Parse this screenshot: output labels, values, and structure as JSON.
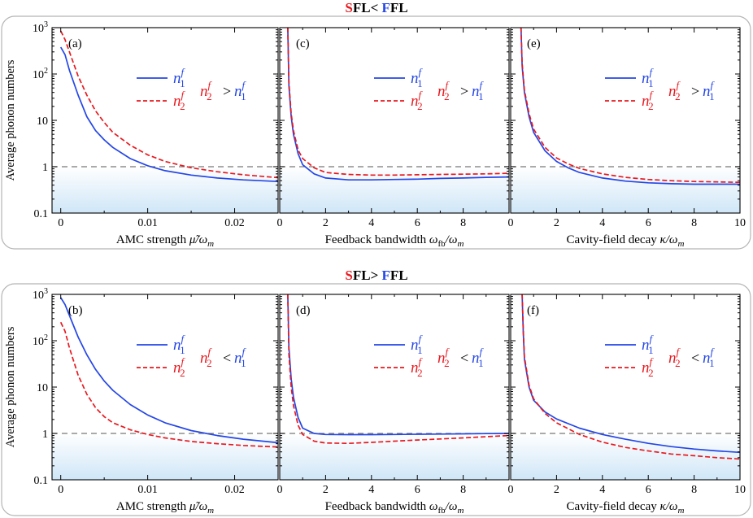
{
  "rows": [
    {
      "header": {
        "s": "S",
        "fl1": "FL",
        "rel": "<",
        "f": "F",
        "fl2": "FL"
      },
      "ylabel": "Average phonon numbers",
      "panels": [
        {
          "label": "(a)",
          "xlabel_prefix": "AMC strength",
          "xlabel_var": "μ̃/ω",
          "xlabel_sub": "m",
          "legend": {
            "n1": "n",
            "n2": "n",
            "sup": "f",
            "sub1": "1",
            "sub2": "2",
            "rel": ">"
          }
        },
        {
          "label": "(c)",
          "xlabel_prefix": "Feedback bandwidth",
          "xlabel_var": "ω",
          "xlabel_var_sub": "fb",
          "xlabel_var2": "/ω",
          "xlabel_sub": "m",
          "legend": {
            "n1": "n",
            "n2": "n",
            "sup": "f",
            "sub1": "1",
            "sub2": "2",
            "rel": ">"
          }
        },
        {
          "label": "(e)",
          "xlabel_prefix": "Cavity-field decay",
          "xlabel_var": "κ/ω",
          "xlabel_sub": "m",
          "legend": {
            "n1": "n",
            "n2": "n",
            "sup": "f",
            "sub1": "1",
            "sub2": "2",
            "rel": ">"
          }
        }
      ]
    },
    {
      "header": {
        "s": "S",
        "fl1": "FL",
        "rel": ">",
        "f": "F",
        "fl2": "FL"
      },
      "ylabel": "Average phonon numbers",
      "panels": [
        {
          "label": "(b)",
          "xlabel_prefix": "AMC strength",
          "xlabel_var": "μ̃/ω",
          "xlabel_sub": "m",
          "legend": {
            "n1": "n",
            "n2": "n",
            "sup": "f",
            "sub1": "1",
            "sub2": "2",
            "rel": "<"
          }
        },
        {
          "label": "(d)",
          "xlabel_prefix": "Feedback bandwidth",
          "xlabel_var": "ω",
          "xlabel_var_sub": "fb",
          "xlabel_var2": "/ω",
          "xlabel_sub": "m",
          "legend": {
            "n1": "n",
            "n2": "n",
            "sup": "f",
            "sub1": "1",
            "sub2": "2",
            "rel": "<"
          }
        },
        {
          "label": "(f)",
          "xlabel_prefix": "Cavity-field decay",
          "xlabel_var": "κ/ω",
          "xlabel_sub": "m",
          "legend": {
            "n1": "n",
            "n2": "n",
            "sup": "f",
            "sub1": "1",
            "sub2": "2",
            "rel": "<"
          }
        }
      ]
    }
  ],
  "colors": {
    "n1": "#2446e6",
    "n2": "#e8191f",
    "dashed_ref": "#777777",
    "shade": "#d7ebf8",
    "S": "#e8191f",
    "F": "#2446e6"
  },
  "chart_data": [
    {
      "type": "line",
      "panel": "(a)",
      "x_label": "AMC strength μ̃/ω_m",
      "ylabel": "Average phonon numbers",
      "xlim": [
        -0.001,
        0.025
      ],
      "ylim": [
        0.1,
        1000
      ],
      "yscale": "log",
      "x_ticks": [
        0,
        0.01,
        0.02
      ],
      "x_tick_labels": [
        "0",
        "0.01",
        "0.02"
      ],
      "y_ticks": [
        0.1,
        1,
        10,
        100,
        1000
      ],
      "y_tick_labels": [
        "0.1",
        "1",
        "10",
        "10²",
        "10³"
      ],
      "reference_line": 1,
      "series": [
        {
          "name": "n1^f",
          "style": "solid",
          "x": [
            0,
            0.0005,
            0.001,
            0.002,
            0.003,
            0.004,
            0.005,
            0.006,
            0.008,
            0.01,
            0.012,
            0.015,
            0.018,
            0.021,
            0.025
          ],
          "y": [
            380,
            260,
            120,
            35,
            12,
            6,
            3.8,
            2.6,
            1.5,
            1.05,
            0.82,
            0.66,
            0.57,
            0.52,
            0.48
          ]
        },
        {
          "name": "n2^f",
          "style": "dashed",
          "x": [
            0,
            0.0005,
            0.001,
            0.002,
            0.003,
            0.004,
            0.005,
            0.006,
            0.008,
            0.01,
            0.012,
            0.015,
            0.018,
            0.021,
            0.025
          ],
          "y": [
            850,
            550,
            300,
            90,
            35,
            16,
            9,
            5.5,
            2.9,
            1.8,
            1.3,
            0.95,
            0.78,
            0.67,
            0.58
          ]
        }
      ]
    },
    {
      "type": "line",
      "panel": "(c)",
      "x_label": "Feedback bandwidth ω_fb/ω_m",
      "ylabel": "Average phonon numbers",
      "xlim": [
        0,
        10
      ],
      "ylim": [
        0.1,
        1000
      ],
      "yscale": "log",
      "x_ticks": [
        0,
        2,
        4,
        6,
        8
      ],
      "x_tick_labels": [
        "0",
        "2",
        "4",
        "6",
        "8"
      ],
      "reference_line": 1,
      "series": [
        {
          "name": "n1^f",
          "style": "solid",
          "x": [
            0.35,
            0.4,
            0.5,
            0.6,
            0.8,
            1,
            1.5,
            2,
            3,
            4,
            5,
            6,
            7,
            8,
            9,
            10
          ],
          "y": [
            1000,
            55,
            12,
            5,
            1.9,
            1.1,
            0.7,
            0.57,
            0.52,
            0.52,
            0.53,
            0.54,
            0.56,
            0.57,
            0.59,
            0.6
          ]
        },
        {
          "name": "n2^f",
          "style": "dashed",
          "x": [
            0.35,
            0.4,
            0.5,
            0.6,
            0.8,
            1,
            1.5,
            2,
            3,
            4,
            5,
            6,
            7,
            8,
            9,
            10
          ],
          "y": [
            1000,
            65,
            14,
            6,
            2.3,
            1.5,
            0.95,
            0.75,
            0.68,
            0.66,
            0.66,
            0.67,
            0.68,
            0.69,
            0.7,
            0.72
          ]
        }
      ]
    },
    {
      "type": "line",
      "panel": "(e)",
      "x_label": "Cavity-field decay κ/ω_m",
      "ylabel": "Average phonon numbers",
      "xlim": [
        0,
        10
      ],
      "ylim": [
        0.1,
        1000
      ],
      "yscale": "log",
      "x_ticks": [
        0,
        2,
        4,
        6,
        8,
        10
      ],
      "x_tick_labels": [
        "0",
        "2",
        "4",
        "6",
        "8",
        "10"
      ],
      "reference_line": 1,
      "series": [
        {
          "name": "n1^f",
          "style": "solid",
          "x": [
            0.45,
            0.5,
            0.6,
            0.8,
            1,
            1.5,
            2,
            2.5,
            3,
            4,
            5,
            6,
            7,
            8,
            9,
            10
          ],
          "y": [
            1000,
            150,
            40,
            12,
            5.5,
            2.2,
            1.3,
            0.95,
            0.75,
            0.57,
            0.49,
            0.45,
            0.43,
            0.42,
            0.42,
            0.42
          ]
        },
        {
          "name": "n2^f",
          "style": "dashed",
          "x": [
            0.45,
            0.5,
            0.6,
            0.8,
            1,
            1.5,
            2,
            2.5,
            3,
            4,
            5,
            6,
            7,
            8,
            9,
            10
          ],
          "y": [
            1000,
            170,
            45,
            14,
            6.5,
            2.6,
            1.55,
            1.15,
            0.92,
            0.7,
            0.59,
            0.53,
            0.5,
            0.48,
            0.47,
            0.46
          ]
        }
      ]
    },
    {
      "type": "line",
      "panel": "(b)",
      "x_label": "AMC strength μ̃/ω_m",
      "ylabel": "Average phonon numbers",
      "xlim": [
        -0.001,
        0.025
      ],
      "ylim": [
        0.1,
        1000
      ],
      "yscale": "log",
      "x_ticks": [
        0,
        0.01,
        0.02
      ],
      "x_tick_labels": [
        "0",
        "0.01",
        "0.02"
      ],
      "reference_line": 1,
      "series": [
        {
          "name": "n1^f",
          "style": "solid",
          "x": [
            0,
            0.0005,
            0.001,
            0.002,
            0.003,
            0.004,
            0.005,
            0.006,
            0.008,
            0.01,
            0.012,
            0.015,
            0.018,
            0.021,
            0.025
          ],
          "y": [
            850,
            600,
            350,
            120,
            50,
            24,
            13.5,
            8.5,
            4.2,
            2.5,
            1.7,
            1.15,
            0.9,
            0.75,
            0.63
          ]
        },
        {
          "name": "n2^f",
          "style": "dashed",
          "x": [
            0,
            0.0005,
            0.001,
            0.002,
            0.003,
            0.004,
            0.005,
            0.006,
            0.008,
            0.01,
            0.012,
            0.015,
            0.018,
            0.021,
            0.025
          ],
          "y": [
            250,
            160,
            70,
            18,
            7,
            3.6,
            2.3,
            1.7,
            1.2,
            0.95,
            0.8,
            0.67,
            0.6,
            0.55,
            0.51
          ]
        }
      ]
    },
    {
      "type": "line",
      "panel": "(d)",
      "x_label": "Feedback bandwidth ω_fb/ω_m",
      "ylabel": "Average phonon numbers",
      "xlim": [
        0,
        10
      ],
      "ylim": [
        0.1,
        1000
      ],
      "yscale": "log",
      "x_ticks": [
        0,
        2,
        4,
        6,
        8
      ],
      "x_tick_labels": [
        "0",
        "2",
        "4",
        "6",
        "8"
      ],
      "reference_line": 1,
      "series": [
        {
          "name": "n1^f",
          "style": "solid",
          "x": [
            0.35,
            0.4,
            0.5,
            0.6,
            0.8,
            1,
            1.5,
            2,
            3,
            4,
            5,
            6,
            7,
            8,
            9,
            10
          ],
          "y": [
            1000,
            70,
            15,
            6,
            2.2,
            1.3,
            1.0,
            0.95,
            0.94,
            0.94,
            0.95,
            0.96,
            0.97,
            0.98,
            0.99,
            1.0
          ]
        },
        {
          "name": "n2^f",
          "style": "dashed",
          "x": [
            0.35,
            0.4,
            0.5,
            0.6,
            0.8,
            1,
            1.5,
            2,
            3,
            4,
            5,
            6,
            7,
            8,
            9,
            10
          ],
          "y": [
            1000,
            50,
            10,
            4,
            1.5,
            0.95,
            0.68,
            0.62,
            0.61,
            0.64,
            0.68,
            0.72,
            0.76,
            0.8,
            0.85,
            0.9
          ]
        }
      ]
    },
    {
      "type": "line",
      "panel": "(f)",
      "x_label": "Cavity-field decay κ/ω_m",
      "ylabel": "Average phonon numbers",
      "xlim": [
        0,
        10
      ],
      "ylim": [
        0.1,
        1000
      ],
      "yscale": "log",
      "x_ticks": [
        0,
        2,
        4,
        6,
        8,
        10
      ],
      "x_tick_labels": [
        "0",
        "2",
        "4",
        "6",
        "8",
        "10"
      ],
      "reference_line": 1,
      "series": [
        {
          "name": "n1^f",
          "style": "solid",
          "x": [
            0.5,
            0.55,
            0.6,
            0.8,
            1,
            1.5,
            2,
            3,
            4,
            5,
            6,
            7,
            8,
            9,
            10
          ],
          "y": [
            1000,
            150,
            40,
            10,
            5.2,
            2.9,
            2.05,
            1.3,
            0.95,
            0.75,
            0.61,
            0.52,
            0.46,
            0.42,
            0.39
          ]
        },
        {
          "name": "n2^f",
          "style": "dashed",
          "x": [
            0.5,
            0.55,
            0.6,
            0.8,
            1,
            1.5,
            2,
            3,
            4,
            5,
            6,
            7,
            8,
            9,
            10
          ],
          "y": [
            1000,
            170,
            45,
            11,
            5.6,
            2.7,
            1.7,
            0.95,
            0.65,
            0.5,
            0.42,
            0.36,
            0.33,
            0.3,
            0.28
          ]
        }
      ]
    }
  ]
}
